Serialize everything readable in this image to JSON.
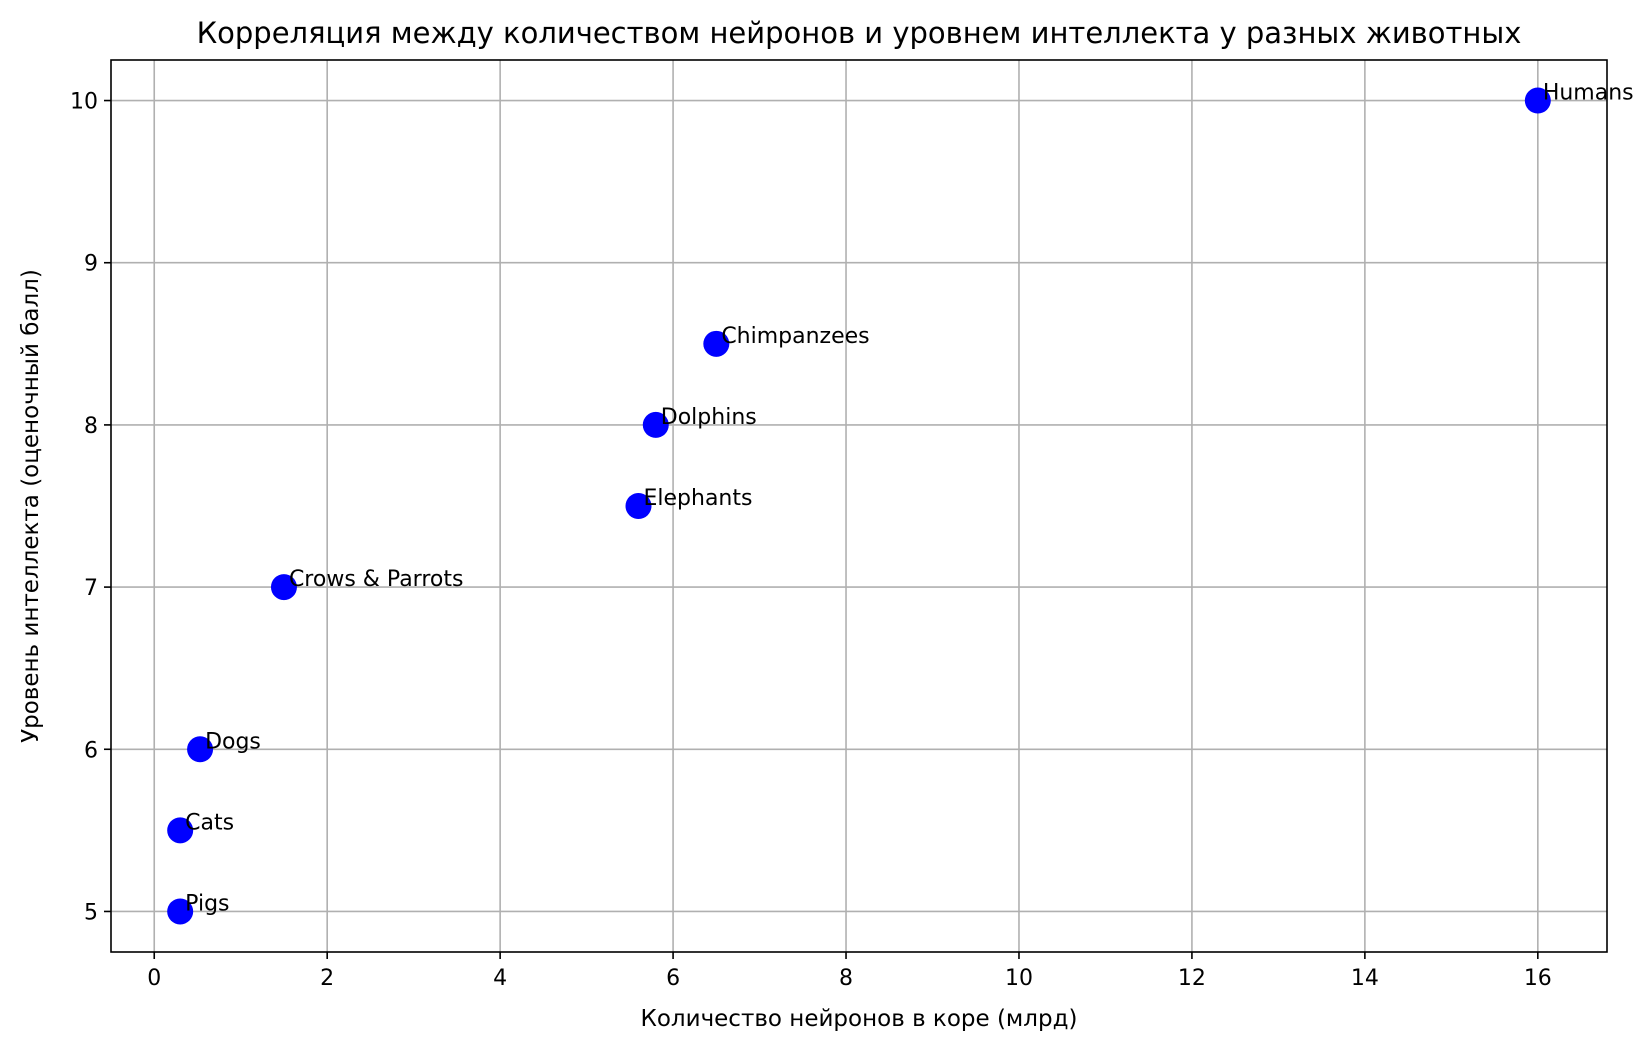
{
  "chart_data": {
    "type": "scatter",
    "title": "Корреляция между количеством нейронов и уровнем интеллекта у разных животных",
    "xlabel": "Количество нейронов в коре (млрд)",
    "ylabel": "Уровень интеллекта (оценочный балл)",
    "xlim": [
      -0.5,
      16.8
    ],
    "ylim": [
      4.75,
      10.25
    ],
    "xticks": [
      0,
      2,
      4,
      6,
      8,
      10,
      12,
      14,
      16
    ],
    "yticks": [
      5,
      6,
      7,
      8,
      9,
      10
    ],
    "grid": true,
    "marker_color": "#0000ff",
    "points": [
      {
        "label": "Humans",
        "x": 16.0,
        "y": 10.0
      },
      {
        "label": "Chimpanzees",
        "x": 6.5,
        "y": 8.5
      },
      {
        "label": "Dolphins",
        "x": 5.8,
        "y": 8.0
      },
      {
        "label": "Elephants",
        "x": 5.6,
        "y": 7.5
      },
      {
        "label": "Crows & Parrots",
        "x": 1.5,
        "y": 7.0
      },
      {
        "label": "Dogs",
        "x": 0.53,
        "y": 6.0
      },
      {
        "label": "Cats",
        "x": 0.3,
        "y": 5.5
      },
      {
        "label": "Pigs",
        "x": 0.3,
        "y": 5.0
      }
    ]
  }
}
